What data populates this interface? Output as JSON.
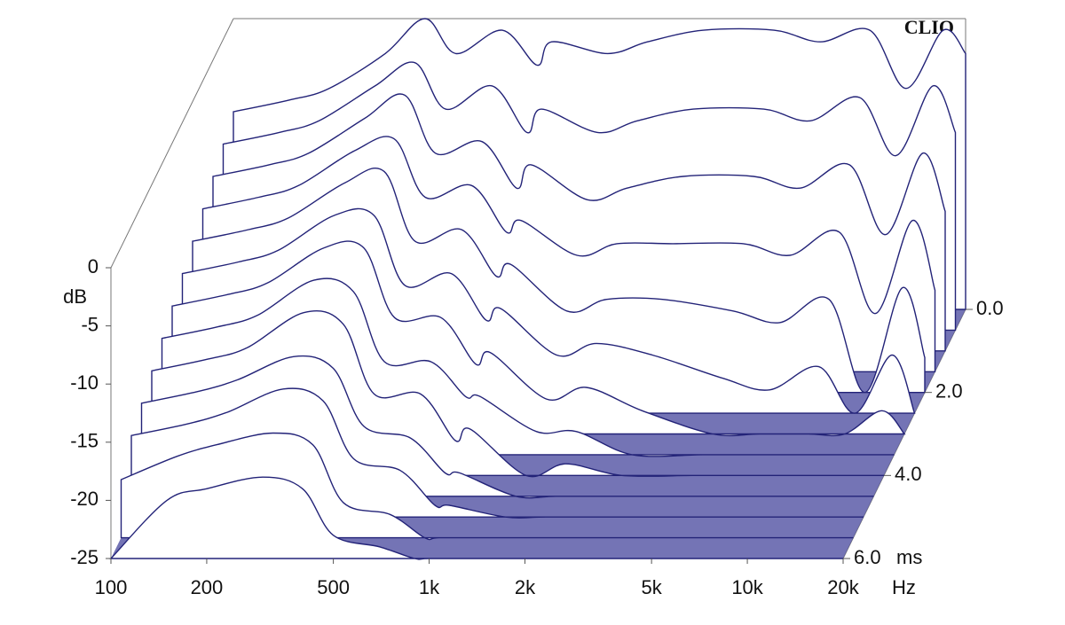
{
  "chart_data": {
    "type": "waterfall",
    "watermark": "CLIO",
    "y_label": "dB",
    "x_label": "Hz",
    "t_label": "ms",
    "x": [
      100,
      150,
      200,
      300,
      400,
      500,
      700,
      900,
      1000,
      1500,
      2000,
      3000,
      5000,
      7000,
      10000,
      13000,
      17000,
      20000
    ],
    "xlim": [
      100,
      20000
    ],
    "log_x": true,
    "xticks": [
      100,
      200,
      500,
      {
        "value": 1000,
        "label": "1k"
      },
      {
        "value": 2000,
        "label": "2k"
      },
      {
        "value": 5000,
        "label": "5k"
      },
      {
        "value": 10000,
        "label": "10k"
      },
      {
        "value": 20000,
        "label": "20k"
      }
    ],
    "ylim": [
      -25,
      0
    ],
    "yticks": [
      0,
      -5,
      -10,
      -15,
      -20,
      -25
    ],
    "tlim": [
      0,
      6
    ],
    "tticks": [
      {
        "value": 0,
        "label": "0.0"
      },
      {
        "value": 2,
        "label": "2.0"
      },
      {
        "value": 4,
        "label": "4.0"
      },
      {
        "value": 6,
        "label": "6.0"
      }
    ],
    "color": "#232378",
    "floor_color": "#5c5ca8",
    "slices": [
      {
        "time": 0,
        "values": [
          -8,
          -7,
          -6,
          -3,
          0,
          -3,
          -1,
          -4,
          -2,
          -3,
          -2,
          -1,
          -1,
          -2,
          -1,
          -6,
          -1,
          -3
        ]
      },
      {
        "time": 0.5,
        "values": [
          -9,
          -8,
          -7,
          -4,
          -2,
          -6,
          -4,
          -8,
          -6,
          -8,
          -7,
          -6,
          -6,
          -7,
          -5,
          -10,
          -4,
          -8
        ]
      },
      {
        "time": 1,
        "values": [
          -10,
          -9,
          -8,
          -5,
          -3,
          -8,
          -7,
          -11,
          -9,
          -12,
          -11,
          -10,
          -10,
          -11,
          -9,
          -15,
          -8,
          -13
        ]
      },
      {
        "time": 1.5,
        "values": [
          -11,
          -10,
          -9,
          -6,
          -5,
          -10,
          -9,
          -13,
          -12,
          -15,
          -14,
          -14,
          -14,
          -15,
          -13,
          -20,
          -12,
          -18
        ]
      },
      {
        "time": 2,
        "values": [
          -12,
          -11,
          -10,
          -7,
          -6,
          -12,
          -11,
          -15,
          -14,
          -18,
          -17,
          -17,
          -18,
          -19,
          -17,
          -25,
          -16,
          -22
        ]
      },
      {
        "time": 2.5,
        "values": [
          -13,
          -12,
          -11,
          -8,
          -8,
          -14,
          -13,
          -17,
          -16,
          -20,
          -19,
          -20,
          -22,
          -23,
          -21,
          -25,
          -20,
          -25
        ]
      },
      {
        "time": 3,
        "values": [
          -14,
          -13,
          -12,
          -9,
          -9,
          -15,
          -15,
          -19,
          -18,
          -22,
          -21,
          -23,
          -25,
          -25,
          -25,
          -25,
          -23,
          -25
        ]
      },
      {
        "time": 3.5,
        "values": [
          -15,
          -14,
          -13,
          -10,
          -11,
          -17,
          -17,
          -20,
          -20,
          -23,
          -23,
          -25,
          -25,
          -25,
          -25,
          -25,
          -25,
          -25
        ]
      },
      {
        "time": 4,
        "values": [
          -16,
          -15,
          -14,
          -11,
          -12,
          -18,
          -18,
          -22,
          -21,
          -25,
          -24,
          -25,
          -25,
          -25,
          -25,
          -25,
          -25,
          -25
        ]
      },
      {
        "time": 4.5,
        "values": [
          -17,
          -16,
          -15,
          -13,
          -14,
          -19,
          -20,
          -23,
          -23,
          -25,
          -25,
          -25,
          -25,
          -25,
          -25,
          -25,
          -25,
          -25
        ]
      },
      {
        "time": 5,
        "values": [
          -18,
          -17,
          -16,
          -14,
          -15,
          -20,
          -21,
          -24,
          -24,
          -25,
          -25,
          -25,
          -25,
          -25,
          -25,
          -25,
          -25,
          -25
        ]
      },
      {
        "time": 5.5,
        "values": [
          -20,
          -18,
          -17,
          -16,
          -17,
          -22,
          -23,
          -25,
          -25,
          -25,
          -25,
          -25,
          -25,
          -25,
          -25,
          -25,
          -25,
          -25
        ]
      },
      {
        "time": 6,
        "values": [
          -25,
          -20,
          -19,
          -18,
          -19,
          -23,
          -24,
          -25,
          -25,
          -25,
          -25,
          -25,
          -25,
          -25,
          -25,
          -25,
          -25,
          -25
        ]
      }
    ]
  }
}
